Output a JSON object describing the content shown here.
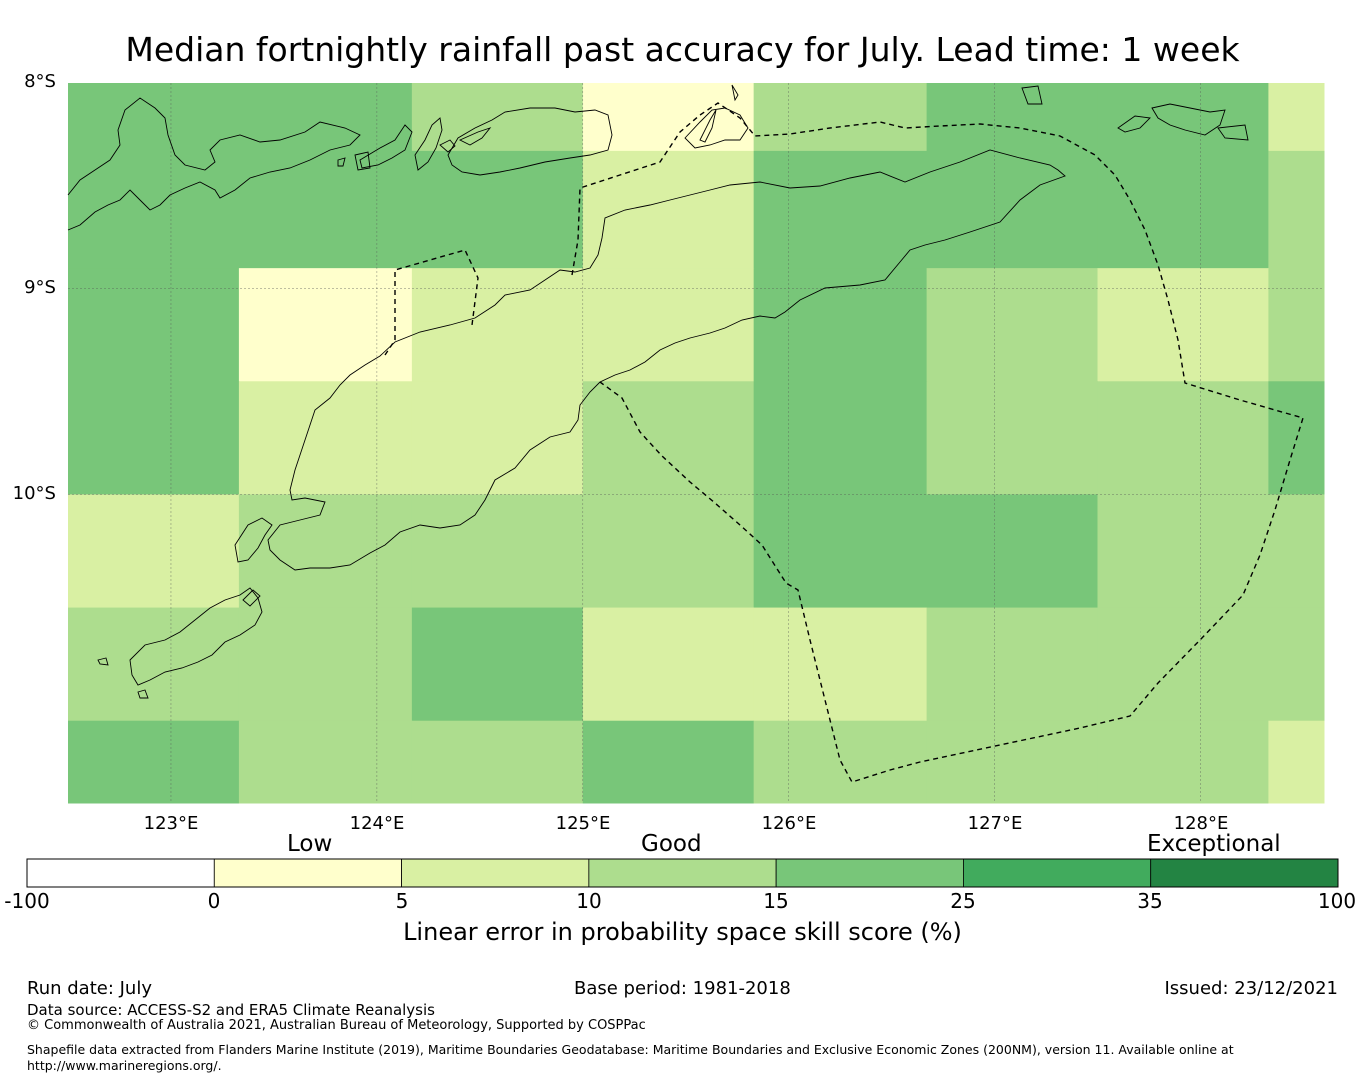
{
  "title": "Median fortnightly rainfall past accuracy for July. Lead time: 1 week",
  "map": {
    "lat_labels": [
      "8°S",
      "9°S",
      "10°S"
    ],
    "lon_labels": [
      "123°E",
      "124°E",
      "125°E",
      "126°E",
      "127°E",
      "128°E"
    ],
    "lon_range": [
      122.5,
      128.6
    ],
    "lat_range": [
      -11.5,
      -8.0
    ],
    "grid_lons": [
      123,
      124,
      125,
      126,
      127,
      128
    ],
    "grid_lats": [
      -9,
      -10
    ],
    "cell_columns_lon": [
      122.5,
      123.33,
      124.17,
      125.0,
      125.83,
      126.67,
      127.5,
      128.33,
      128.6
    ],
    "cell_rows_lat": [
      -8.0,
      -8.33,
      -8.9,
      -9.45,
      -10.0,
      -10.55,
      -11.1,
      -11.5
    ],
    "skill_cells": [
      [
        3,
        3,
        2,
        0,
        2,
        3,
        3,
        1
      ],
      [
        3,
        3,
        3,
        1,
        3,
        3,
        3,
        2
      ],
      [
        3,
        0,
        1,
        1,
        3,
        2,
        1,
        2
      ],
      [
        3,
        1,
        1,
        2,
        3,
        2,
        2,
        3
      ],
      [
        1,
        2,
        2,
        2,
        3,
        3,
        2,
        2
      ],
      [
        2,
        2,
        3,
        1,
        1,
        2,
        2,
        2
      ],
      [
        3,
        2,
        2,
        3,
        2,
        2,
        2,
        1
      ]
    ]
  },
  "colorbar": {
    "category_labels": [
      "Low",
      "Good",
      "Exceptional"
    ],
    "ticks": [
      "-100",
      "0",
      "5",
      "10",
      "15",
      "25",
      "35",
      "100"
    ],
    "colors": [
      "#ffffff",
      "#ffffcc",
      "#d9f0a3",
      "#addd8e",
      "#78c679",
      "#41ab5d",
      "#238443"
    ],
    "title": "Linear error in probability space skill score (%)"
  },
  "footer": {
    "run_date": "Run date: July",
    "base_period": "Base period: 1981-2018",
    "issued": "Issued: 23/12/2021",
    "data_source": "Data source: ACCESS-S2 and ERA5 Climate Reanalysis",
    "copyright": "© Commonwealth of Australia 2021, Australian Bureau of Meteorology, Supported by COSPPac",
    "shapefile_line1": "Shapefile data extracted from Flanders Marine Institute (2019), Maritime Boundaries Geodatabase: Maritime Boundaries and Exclusive Economic Zones (200NM), version 11. Available online at",
    "shapefile_line2": "http://www.marineregions.org/."
  }
}
